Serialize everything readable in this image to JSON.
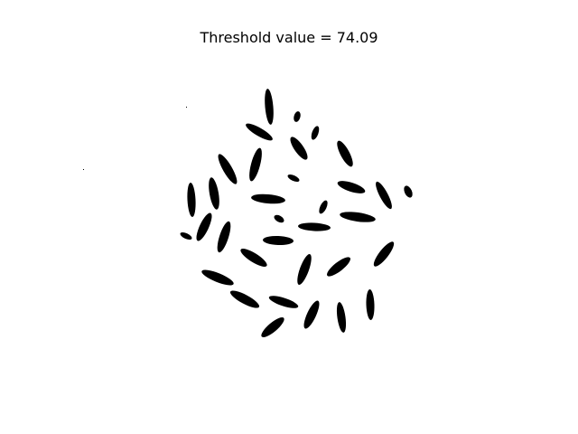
{
  "title": "Threshold value = 74.09",
  "image": {
    "kind": "binary-thresholded-image",
    "subject": "rice grains",
    "foreground_color": "#000000",
    "background_color": "#ffffff",
    "axes": "off"
  }
}
